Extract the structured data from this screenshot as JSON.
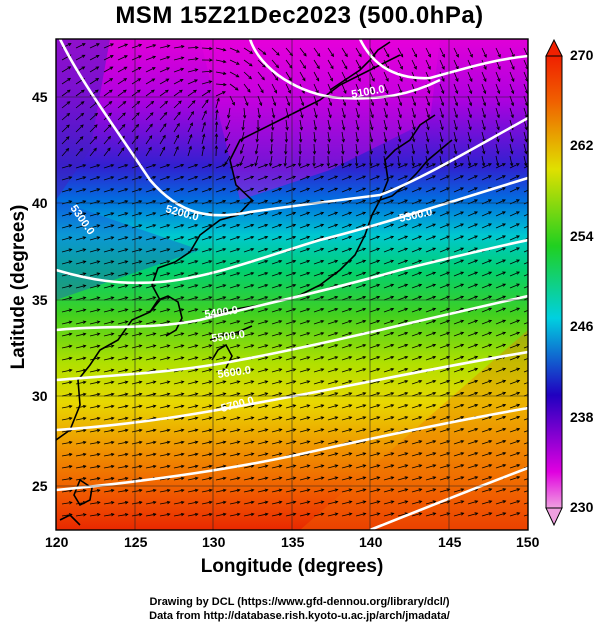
{
  "title": "MSM 15Z21Dec2023 (500.0hPa)",
  "xlabel": "Longitude (degrees)",
  "ylabel": "Latitude  (degrees)",
  "x_ticks": [
    "120",
    "125",
    "130",
    "135",
    "140",
    "145",
    "150"
  ],
  "y_ticks": [
    "25",
    "30",
    "35",
    "40",
    "45"
  ],
  "colorbar_ticks": [
    "270",
    "262",
    "254",
    "246",
    "238",
    "230"
  ],
  "contour_labels": [
    "5100.0",
    "5200.0",
    "5300.0",
    "5300.0",
    "5400.0",
    "5500.0",
    "5600.0",
    "5700.0"
  ],
  "credit_line1": "Drawing by DCL (https://www.gfd-dennou.org/library/dcl/)",
  "credit_line2": "Data from http://database.rish.kyoto-u.ac.jp/arch/jmadata/",
  "extent": {
    "lon": [
      120,
      150
    ],
    "lat": [
      22.5,
      47.6
    ]
  },
  "temperature_range": [
    230,
    270
  ]
}
